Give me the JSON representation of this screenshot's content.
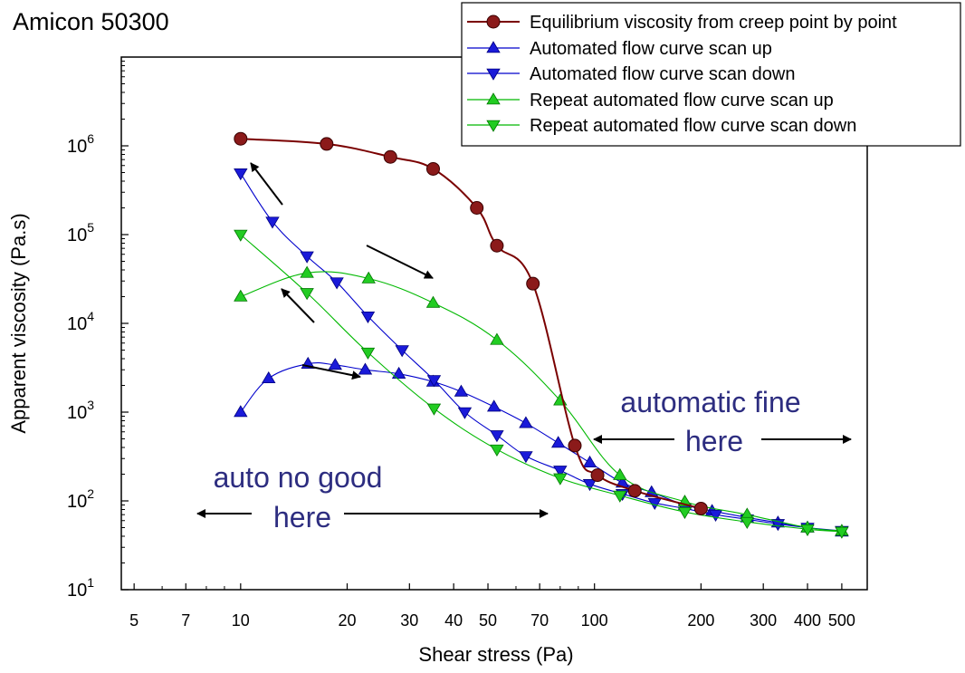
{
  "chart_data": {
    "type": "scatter",
    "title": "Amicon 50300",
    "xlabel": "Shear stress (Pa)",
    "ylabel": "Apparent viscosity (Pa.s)",
    "x_scale": "log",
    "y_scale": "log",
    "xlim": [
      4.6,
      590
    ],
    "ylim": [
      10,
      10000000
    ],
    "grid": false,
    "legend_position": "top-right",
    "x_ticks": [
      {
        "value": 5,
        "label": "5"
      },
      {
        "value": 7,
        "label": "7"
      },
      {
        "value": 10,
        "label": "10"
      },
      {
        "value": 20,
        "label": "20"
      },
      {
        "value": 30,
        "label": "30"
      },
      {
        "value": 40,
        "label": "40"
      },
      {
        "value": 50,
        "label": "50"
      },
      {
        "value": 70,
        "label": "70"
      },
      {
        "value": 100,
        "label": "100"
      },
      {
        "value": 200,
        "label": "200"
      },
      {
        "value": 300,
        "label": "300"
      },
      {
        "value": 400,
        "label": "400"
      },
      {
        "value": 500,
        "label": "500"
      }
    ],
    "y_ticks": [
      {
        "value": 10,
        "base": "10",
        "exp": "1"
      },
      {
        "value": 100,
        "base": "10",
        "exp": "2"
      },
      {
        "value": 1000,
        "base": "10",
        "exp": "3"
      },
      {
        "value": 10000,
        "base": "10",
        "exp": "4"
      },
      {
        "value": 100000,
        "base": "10",
        "exp": "5"
      },
      {
        "value": 1000000,
        "base": "10",
        "exp": "6"
      }
    ],
    "series": [
      {
        "name": "Equilibrium viscosity from creep point by point",
        "color": "#7a0000",
        "marker_color": "#8b1a1a",
        "marker": "circle",
        "x": [
          10,
          17.5,
          26.5,
          35,
          46.5,
          53,
          67,
          88,
          102,
          130,
          200
        ],
        "y": [
          1200000,
          1050000,
          750000,
          550000,
          200000,
          75000,
          28000,
          420,
          195,
          130,
          82
        ]
      },
      {
        "name": "Automated flow curve scan up",
        "color": "#0000cc",
        "marker_color": "#1a1ad9",
        "marker": "triangle-up",
        "x": [
          10,
          12,
          15.5,
          18.5,
          22.5,
          28,
          35,
          42,
          52,
          64,
          79,
          97,
          120,
          145,
          180,
          215,
          270,
          330,
          400,
          500
        ],
        "y": [
          1000,
          2400,
          3500,
          3400,
          3000,
          2700,
          2200,
          1700,
          1150,
          750,
          450,
          270,
          160,
          125,
          90,
          77,
          65,
          57,
          50,
          45
        ]
      },
      {
        "name": "Automated flow curve scan down",
        "color": "#0000cc",
        "marker_color": "#1a1ad9",
        "marker": "triangle-down",
        "x": [
          10,
          12.3,
          15.4,
          18.7,
          22.9,
          28.6,
          35.2,
          43,
          53,
          64,
          80,
          97,
          120,
          148,
          180,
          220,
          270,
          330,
          400,
          500
        ],
        "y": [
          490000,
          140000,
          57000,
          29000,
          12000,
          5000,
          2300,
          1000,
          550,
          320,
          220,
          155,
          120,
          95,
          82,
          70,
          62,
          55,
          50,
          46
        ]
      },
      {
        "name": "Repeat automated flow curve scan up",
        "color": "#00b800",
        "marker_color": "#22cc22",
        "marker": "triangle-up",
        "x": [
          10,
          15.4,
          23,
          35,
          53,
          80,
          118,
          180,
          270,
          400,
          500
        ],
        "y": [
          20000,
          37000,
          32000,
          17000,
          6500,
          1350,
          195,
          98,
          70,
          50,
          46
        ]
      },
      {
        "name": "Repeat automated flow curve scan down",
        "color": "#00b800",
        "marker_color": "#22cc22",
        "marker": "triangle-down",
        "x": [
          10,
          15.4,
          22.9,
          35.2,
          53,
          80,
          118,
          180,
          270,
          400,
          500
        ],
        "y": [
          100000,
          22000,
          4700,
          1100,
          380,
          180,
          115,
          75,
          58,
          48,
          45
        ]
      }
    ],
    "annotations": [
      {
        "id": "fine",
        "lines": [
          "automatic fine",
          "here"
        ],
        "color": "#2d2d80"
      },
      {
        "id": "nogood",
        "lines": [
          "auto no good",
          "here"
        ],
        "color": "#2d2d80"
      }
    ]
  }
}
